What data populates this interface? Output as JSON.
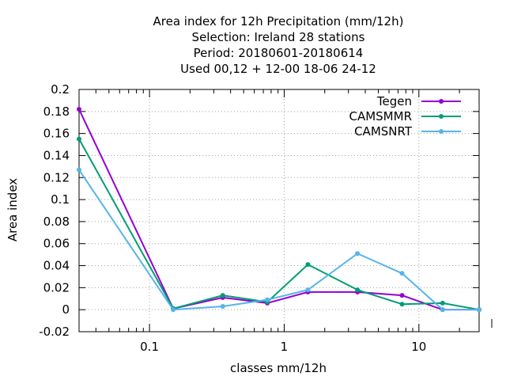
{
  "chart_data": {
    "type": "line",
    "title_lines": [
      "Area index  for 12h Precipitation (mm/12h)",
      "Selection: Ireland      28 stations",
      "Period: 20180601-20180614",
      "Used  00,12  + 12-00 18-06 24-12"
    ],
    "xlabel": "classes mm/12h",
    "ylabel": "Area index",
    "x_scale": "log",
    "xlim": [
      0.03,
      28
    ],
    "ylim": [
      -0.02,
      0.2
    ],
    "x_ticks": [
      0.1,
      1,
      10
    ],
    "x_tick_labels": [
      "0.1",
      "1",
      "10"
    ],
    "y_ticks": [
      -0.02,
      0,
      0.02,
      0.04,
      0.06,
      0.08,
      0.1,
      0.12,
      0.14,
      0.16,
      0.18,
      0.2
    ],
    "y_tick_labels": [
      "-0.02",
      "0",
      "0.02",
      "0.04",
      "0.06",
      "0.08",
      "0.1",
      "0.12",
      "0.14",
      "0.16",
      "0.18",
      "0.2"
    ],
    "grid": true,
    "legend_position": "top-right",
    "x": [
      0.03,
      0.15,
      0.35,
      0.75,
      1.5,
      3.5,
      7.5,
      15,
      28
    ],
    "series": [
      {
        "name": "Tegen",
        "color": "#9400d3",
        "values": [
          0.182,
          0.001,
          0.011,
          0.006,
          0.016,
          0.016,
          0.013,
          0.0,
          0.0
        ]
      },
      {
        "name": "CAMSMMR",
        "color": "#009e73",
        "values": [
          0.155,
          0.001,
          0.013,
          0.007,
          0.041,
          0.018,
          0.005,
          0.006,
          0.0
        ]
      },
      {
        "name": "CAMSNRT",
        "color": "#56b4e9",
        "values": [
          0.127,
          0.0,
          0.003,
          0.009,
          0.018,
          0.051,
          0.033,
          0.0,
          0.0
        ]
      }
    ]
  }
}
